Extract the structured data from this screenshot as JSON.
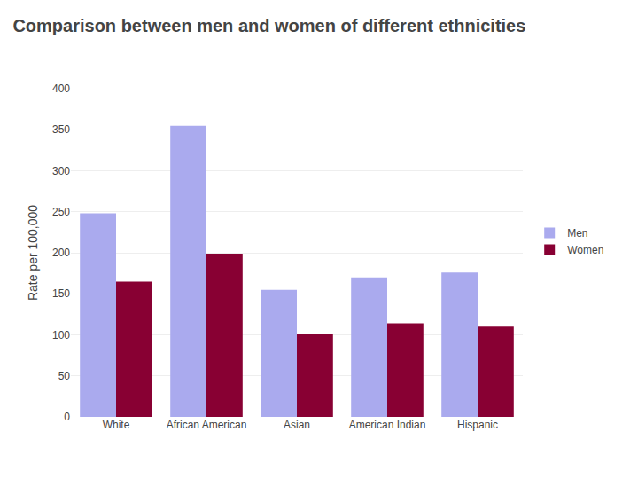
{
  "chart_data": {
    "type": "bar",
    "title": "Comparison between men and women of different ethnicities",
    "categories": [
      "White",
      "African American",
      "Asian",
      "American Indian",
      "Hispanic"
    ],
    "series": [
      {
        "name": "Men",
        "color": "#aaaaee",
        "values": [
          248,
          355,
          155,
          170,
          176
        ]
      },
      {
        "name": "Women",
        "color": "#880033",
        "values": [
          165,
          199,
          101,
          114,
          110
        ]
      }
    ],
    "ylabel": "Rate per 100,000",
    "ylim": [
      0,
      400
    ],
    "yticks": [
      0,
      50,
      100,
      150,
      200,
      250,
      300,
      350,
      400
    ],
    "grid": true,
    "legend": "right"
  }
}
